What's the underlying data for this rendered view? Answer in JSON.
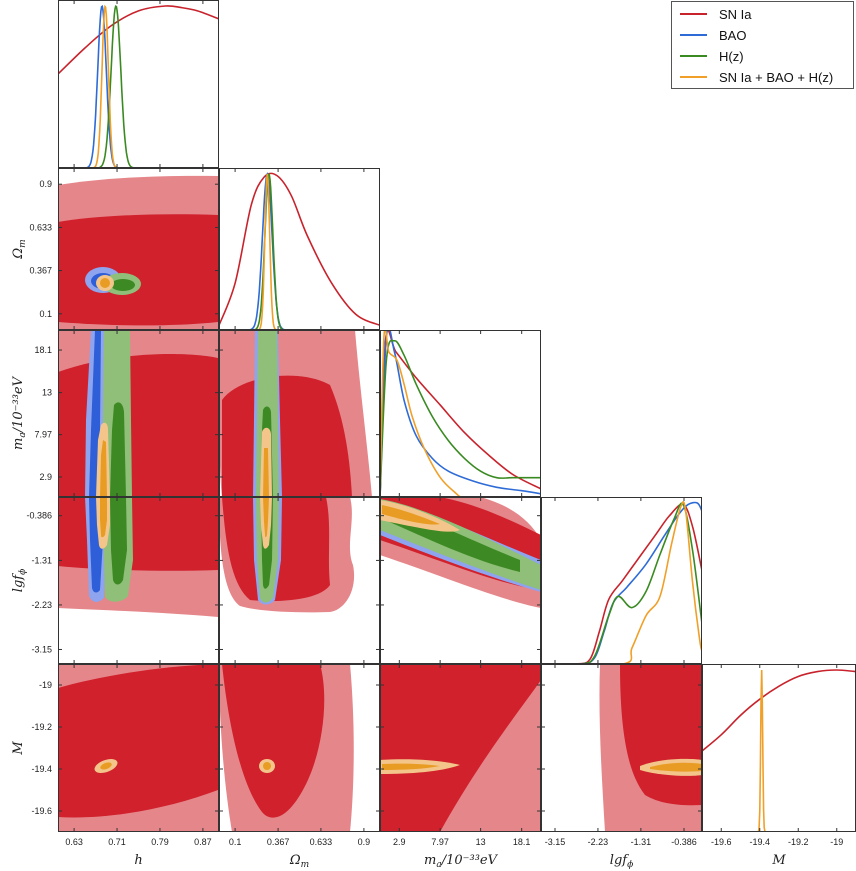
{
  "chart_data": {
    "type": "corner",
    "legend_position": "top-right",
    "series": [
      {
        "name": "SN Ia",
        "color": "#c8232c"
      },
      {
        "name": "BAO",
        "color": "#2e6bd6"
      },
      {
        "name": "H(z)",
        "color": "#3a8a22"
      },
      {
        "name": "SN Ia + BAO + H(z)",
        "color": "#f0a028"
      }
    ],
    "params": [
      {
        "key": "h",
        "label": "h",
        "range": [
          0.6,
          0.9
        ],
        "ticks": [
          "0.63",
          "0.71",
          "0.79",
          "0.87"
        ],
        "tick_values": [
          0.63,
          0.71,
          0.79,
          0.87
        ]
      },
      {
        "key": "Om",
        "label": "Ω",
        "label_sub": "m",
        "range": [
          0.0,
          1.0
        ],
        "ticks": [
          "0.1",
          "0.367",
          "0.633",
          "0.9"
        ],
        "tick_values": [
          0.1,
          0.367,
          0.633,
          0.9
        ]
      },
      {
        "key": "ma",
        "label": "m",
        "label_sub": "a",
        "label_rest": "/10⁻³³eV",
        "range": [
          0.5,
          20.5
        ],
        "ticks": [
          "2.9",
          "7.97",
          "13",
          "18.1"
        ],
        "tick_values": [
          2.9,
          7.97,
          13.0,
          18.1
        ]
      },
      {
        "key": "lgf",
        "label": "lgf",
        "label_sub": "ϕ",
        "range": [
          -3.45,
          0.0
        ],
        "ticks": [
          "-3.15",
          "-2.23",
          "-1.31",
          "-0.386"
        ],
        "tick_values": [
          -3.15,
          -2.23,
          -1.31,
          -0.386
        ]
      },
      {
        "key": "M",
        "label": "M",
        "range": [
          -19.7,
          -18.9
        ],
        "ticks": [
          "-19.6",
          "-19.4",
          "-19.2",
          "-19"
        ],
        "tick_values": [
          -19.6,
          -19.4,
          -19.2,
          -19.0
        ]
      }
    ],
    "marginals": {
      "h": {
        "SN Ia": {
          "x": [
            0.6,
            0.65,
            0.7,
            0.75,
            0.8,
            0.83,
            0.86,
            0.9
          ],
          "y": [
            0.58,
            0.74,
            0.88,
            0.97,
            1.0,
            0.99,
            0.97,
            0.92
          ]
        },
        "BAO": {
          "peak": 0.682,
          "sigma": 0.008
        },
        "H(z)": {
          "peak": 0.708,
          "sigma": 0.009
        },
        "SN Ia + BAO + H(z)": {
          "peak": 0.688,
          "sigma": 0.006
        }
      },
      "Om": {
        "SN Ia": {
          "x": [
            0.0,
            0.1,
            0.2,
            0.28,
            0.36,
            0.45,
            0.55,
            0.7,
            0.85,
            1.0
          ],
          "y": [
            0.03,
            0.3,
            0.8,
            0.98,
            0.99,
            0.86,
            0.6,
            0.3,
            0.1,
            0.03
          ]
        },
        "BAO": {
          "peak": 0.3,
          "sigma": 0.03
        },
        "H(z)": {
          "peak": 0.31,
          "sigma": 0.025
        },
        "SN Ia + BAO + H(z)": {
          "peak": 0.3,
          "sigma": 0.015
        }
      },
      "ma": {
        "SN Ia": {
          "x": [
            0.5,
            1.2,
            2.5,
            5,
            8,
            11,
            14,
            17,
            20.5
          ],
          "y": [
            0.0,
            0.98,
            0.9,
            0.74,
            0.57,
            0.4,
            0.26,
            0.14,
            0.05
          ]
        },
        "BAO": {
          "x": [
            0.5,
            1.3,
            2.3,
            3.5,
            5,
            7,
            9,
            12,
            15,
            18,
            20.5
          ],
          "y": [
            0.0,
            1.0,
            0.9,
            0.6,
            0.38,
            0.24,
            0.16,
            0.1,
            0.06,
            0.04,
            0.02
          ]
        },
        "H(z)": {
          "x": [
            0.5,
            1.3,
            2.3,
            3.5,
            5,
            7,
            9,
            11,
            13,
            15,
            17,
            20.5
          ],
          "y": [
            0.0,
            0.85,
            0.97,
            0.88,
            0.7,
            0.5,
            0.35,
            0.24,
            0.16,
            0.12,
            0.12,
            0.12
          ]
        },
        "SN Ia + BAO + H(z)": {
          "x": [
            0.5,
            1.0,
            1.6,
            2.6,
            3.5,
            4.5,
            6,
            8,
            10,
            10.5
          ],
          "y": [
            0.0,
            1.0,
            0.9,
            0.85,
            0.7,
            0.5,
            0.3,
            0.12,
            0.02,
            0.0
          ]
        }
      },
      "lgf": {
        "SN Ia": {
          "x": [
            -3.45,
            -2.7,
            -2.4,
            -2.2,
            -2.0,
            -1.7,
            -1.3,
            -1.0,
            -0.7,
            -0.4,
            -0.2,
            0.0
          ],
          "y": [
            0.0,
            0.0,
            0.03,
            0.2,
            0.4,
            0.52,
            0.68,
            0.8,
            0.92,
            0.99,
            0.85,
            0.58
          ]
        },
        "BAO": {
          "x": [
            -3.45,
            -2.6,
            -2.3,
            -2.1,
            -1.9,
            -1.6,
            -1.2,
            -0.8,
            -0.5,
            -0.3,
            -0.1,
            0.0
          ],
          "y": [
            0.0,
            0.0,
            0.04,
            0.2,
            0.38,
            0.48,
            0.62,
            0.8,
            0.93,
            0.99,
            1.0,
            0.95
          ]
        },
        "H(z)": {
          "x": [
            -3.45,
            -2.6,
            -2.3,
            -2.0,
            -1.8,
            -1.5,
            -1.2,
            -0.9,
            -0.6,
            -0.4,
            -0.2,
            0.0
          ],
          "y": [
            0.0,
            0.0,
            0.05,
            0.3,
            0.42,
            0.35,
            0.45,
            0.68,
            0.9,
            0.99,
            0.7,
            0.25
          ]
        },
        "SN Ia + BAO + H(z)": {
          "x": [
            -3.45,
            -1.7,
            -1.5,
            -1.2,
            -0.9,
            -0.65,
            -0.45,
            -0.35,
            -0.2,
            -0.05,
            0.0
          ],
          "y": [
            0.0,
            0.0,
            0.1,
            0.3,
            0.42,
            0.75,
            0.98,
            0.95,
            0.5,
            0.15,
            0.08
          ]
        }
      },
      "M": {
        "SN Ia": {
          "x": [
            -19.7,
            -19.6,
            -19.5,
            -19.4,
            -19.3,
            -19.2,
            -19.1,
            -19.0,
            -18.9
          ],
          "y": [
            0.5,
            0.6,
            0.72,
            0.82,
            0.9,
            0.96,
            0.99,
            1.0,
            0.99
          ]
        },
        "SN Ia + BAO + H(z)": {
          "peak": -19.39,
          "sigma": 0.005
        }
      }
    }
  }
}
